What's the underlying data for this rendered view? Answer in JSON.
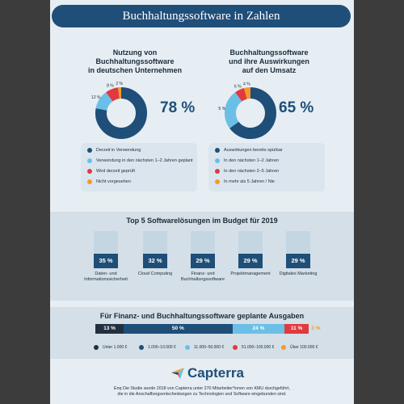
{
  "header": {
    "title": "Buchhaltungssoftware in Zahlen"
  },
  "colors": {
    "navy": "#1f4e79",
    "lightblue": "#6bbfe6",
    "red": "#e0393e",
    "orange": "#f39a2c",
    "background": "#e6eef3"
  },
  "section1": {
    "title": "Nutzung von\nBuchhaltungssoftware\nin deutschen Unternehmen",
    "headline_pct": "78 %",
    "legend": [
      "Derzeit in Verwendung",
      "Verwendung in den nächsten 1–2 Jahren geplant",
      "Wird derzeit geprüft",
      "Nicht vorgesehen"
    ]
  },
  "section2": {
    "title": "Buchhaltungssoftware\nund ihre Auswirkungen\nauf den Umsatz",
    "headline_pct": "65 %",
    "legend": [
      "Auswirkungen bereits spürbar",
      "In den nächsten 1–2 Jahren",
      "In den nächsten 2–5 Jahren",
      "In mehr als 5 Jahren / Nie"
    ]
  },
  "section3": {
    "title": "Top 5 Softwarelösungen im Budget für 2019"
  },
  "section4": {
    "title": "Für Finanz- und Buchhaltungssoftware geplante Ausgaben"
  },
  "footer": {
    "logo_text": "Capterra",
    "note": "Enq Die Studie wurde 2018 von Capterra unter 270 Mitarbeiter*innen von KMU durchgeführt,\ndie in die Anschaffungsentscheidungen zu Technologien und Software eingebunden sind."
  },
  "chart_data": [
    {
      "type": "pie",
      "title": "Nutzung von Buchhaltungssoftware in deutschen Unternehmen",
      "categories": [
        "Derzeit in Verwendung",
        "Verwendung in den nächsten 1–2 Jahren geplant",
        "Wird derzeit geprüft",
        "Nicht vorgesehen"
      ],
      "values": [
        78,
        12,
        8,
        2
      ],
      "labels": [
        "78 %",
        "12 %",
        "8 %",
        "2 %"
      ]
    },
    {
      "type": "pie",
      "title": "Buchhaltungssoftware und ihre Auswirkungen auf den Umsatz",
      "categories": [
        "Auswirkungen bereits spürbar",
        "In den nächsten 1–2 Jahren",
        "In den nächsten 2–5 Jahren",
        "In mehr als 5 Jahren / Nie"
      ],
      "values": [
        65,
        25,
        6,
        4
      ],
      "labels": [
        "65 %",
        "25 %",
        "6 %",
        "4 %"
      ]
    },
    {
      "type": "bar",
      "title": "Top 5 Softwarelösungen im Budget für 2019",
      "categories": [
        "Daten- und\nInformationssicherheit",
        "Cloud Computing",
        "Finanz- und\nBuchhaltungssoftware",
        "Projektmanagement",
        "Digitales Marketing"
      ],
      "values": [
        35,
        32,
        29,
        29,
        29
      ],
      "labels": [
        "35 %",
        "32 %",
        "29 %",
        "29 %",
        "29 %"
      ],
      "ylim": [
        0,
        100
      ]
    },
    {
      "type": "bar",
      "title": "Für Finanz- und Buchhaltungssoftware geplante Ausgaben",
      "categories": [
        "Unter 1.000 €",
        "1.000–10.000 €",
        "11.000–50.000 €",
        "51.000–100.000 €",
        "Über 100.000 €"
      ],
      "values": [
        13,
        50,
        24,
        11,
        3
      ],
      "labels": [
        "13 %",
        "50 %",
        "24 %",
        "11 %",
        "3 %"
      ],
      "colors": [
        "#22303e",
        "#1f4e79",
        "#6bbfe6",
        "#e0393e",
        "#f39a2c"
      ]
    }
  ]
}
